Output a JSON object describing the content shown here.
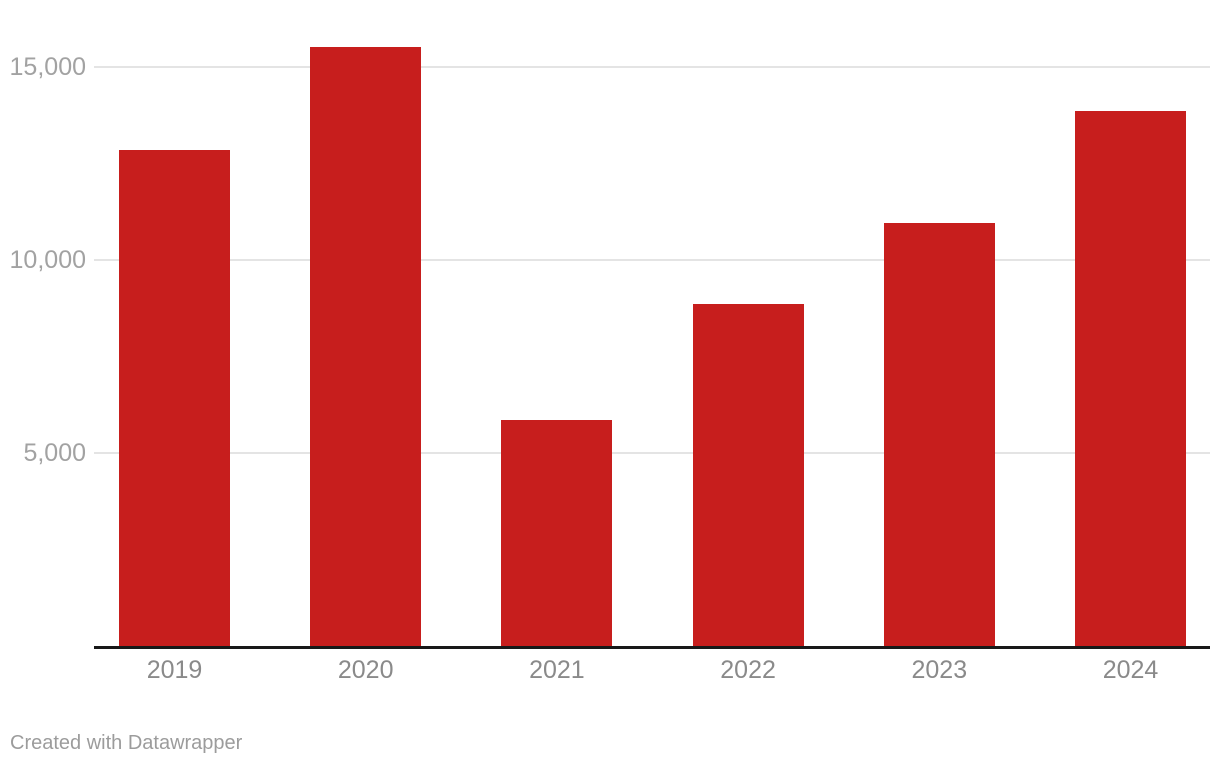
{
  "chart_data": {
    "type": "bar",
    "categories": [
      "2019",
      "2020",
      "2021",
      "2022",
      "2023",
      "2024"
    ],
    "values": [
      12850,
      15500,
      5850,
      8850,
      10950,
      13850
    ],
    "title": "",
    "xlabel": "",
    "ylabel": "",
    "ylim": [
      0,
      16700
    ],
    "y_ticks": [
      5000,
      10000,
      15000
    ],
    "y_tick_labels": [
      "5,000",
      "10,000",
      "15,000"
    ],
    "grid": "horizontal-only",
    "legend": "none",
    "bar_color": "#c71e1d"
  },
  "footer": {
    "attribution": "Created with Datawrapper"
  },
  "colors": {
    "bar": "#c71e1d",
    "axis_line": "#181818",
    "gridline": "#e4e4e4",
    "y_tick_label": "#a2a2a2",
    "x_tick_label": "#8a8a8a",
    "attribution": "#9c9c9c",
    "background": "#ffffff"
  }
}
